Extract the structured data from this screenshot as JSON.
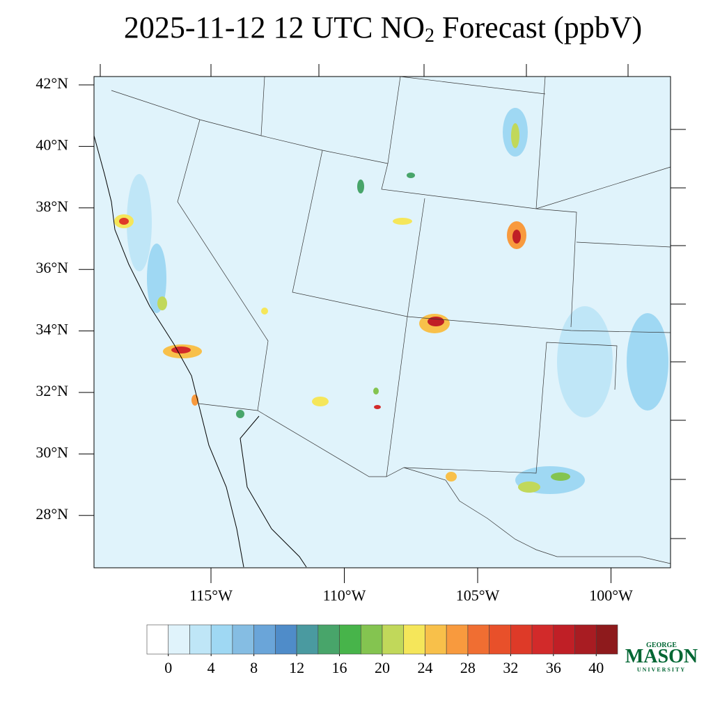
{
  "header": {
    "title": "2025-11-12 12 UTC NO",
    "title_subscript": "2",
    "title_rest": " Forecast (ppbV)"
  },
  "map": {
    "lat_ticks": [
      {
        "value": 42,
        "label": "42°N"
      },
      {
        "value": 40,
        "label": "40°N"
      },
      {
        "value": 38,
        "label": "38°N"
      },
      {
        "value": 36,
        "label": "36°N"
      },
      {
        "value": 34,
        "label": "34°N"
      },
      {
        "value": 32,
        "label": "32°N"
      },
      {
        "value": 30,
        "label": "30°N"
      },
      {
        "value": 28,
        "label": "28°N"
      }
    ],
    "lon_ticks": [
      {
        "value": 115,
        "label": "115°W"
      },
      {
        "value": 110,
        "label": "110°W"
      },
      {
        "value": 105,
        "label": "105°W"
      },
      {
        "value": 100,
        "label": "100°W"
      }
    ]
  },
  "colorbar": {
    "range": [
      -2,
      42
    ],
    "colors": [
      "#ffffff",
      "#e0f3fb",
      "#bfe6f7",
      "#9fd8f3",
      "#85bde3",
      "#6aa5d9",
      "#4f8cc9",
      "#4a9aa0",
      "#48a56a",
      "#47b44a",
      "#84c450",
      "#c1d85a",
      "#f5e65a",
      "#f8c04a",
      "#f89a3e",
      "#f06e32",
      "#e8502a",
      "#de3a28",
      "#d22a2a",
      "#c01f26",
      "#a81c22",
      "#8e1a1c"
    ],
    "ticks": [
      0,
      4,
      8,
      12,
      16,
      20,
      24,
      28,
      32,
      36,
      40
    ]
  },
  "logo": {
    "top": "GEORGE",
    "main": "MASON",
    "bottom": "UNIVERSITY"
  }
}
